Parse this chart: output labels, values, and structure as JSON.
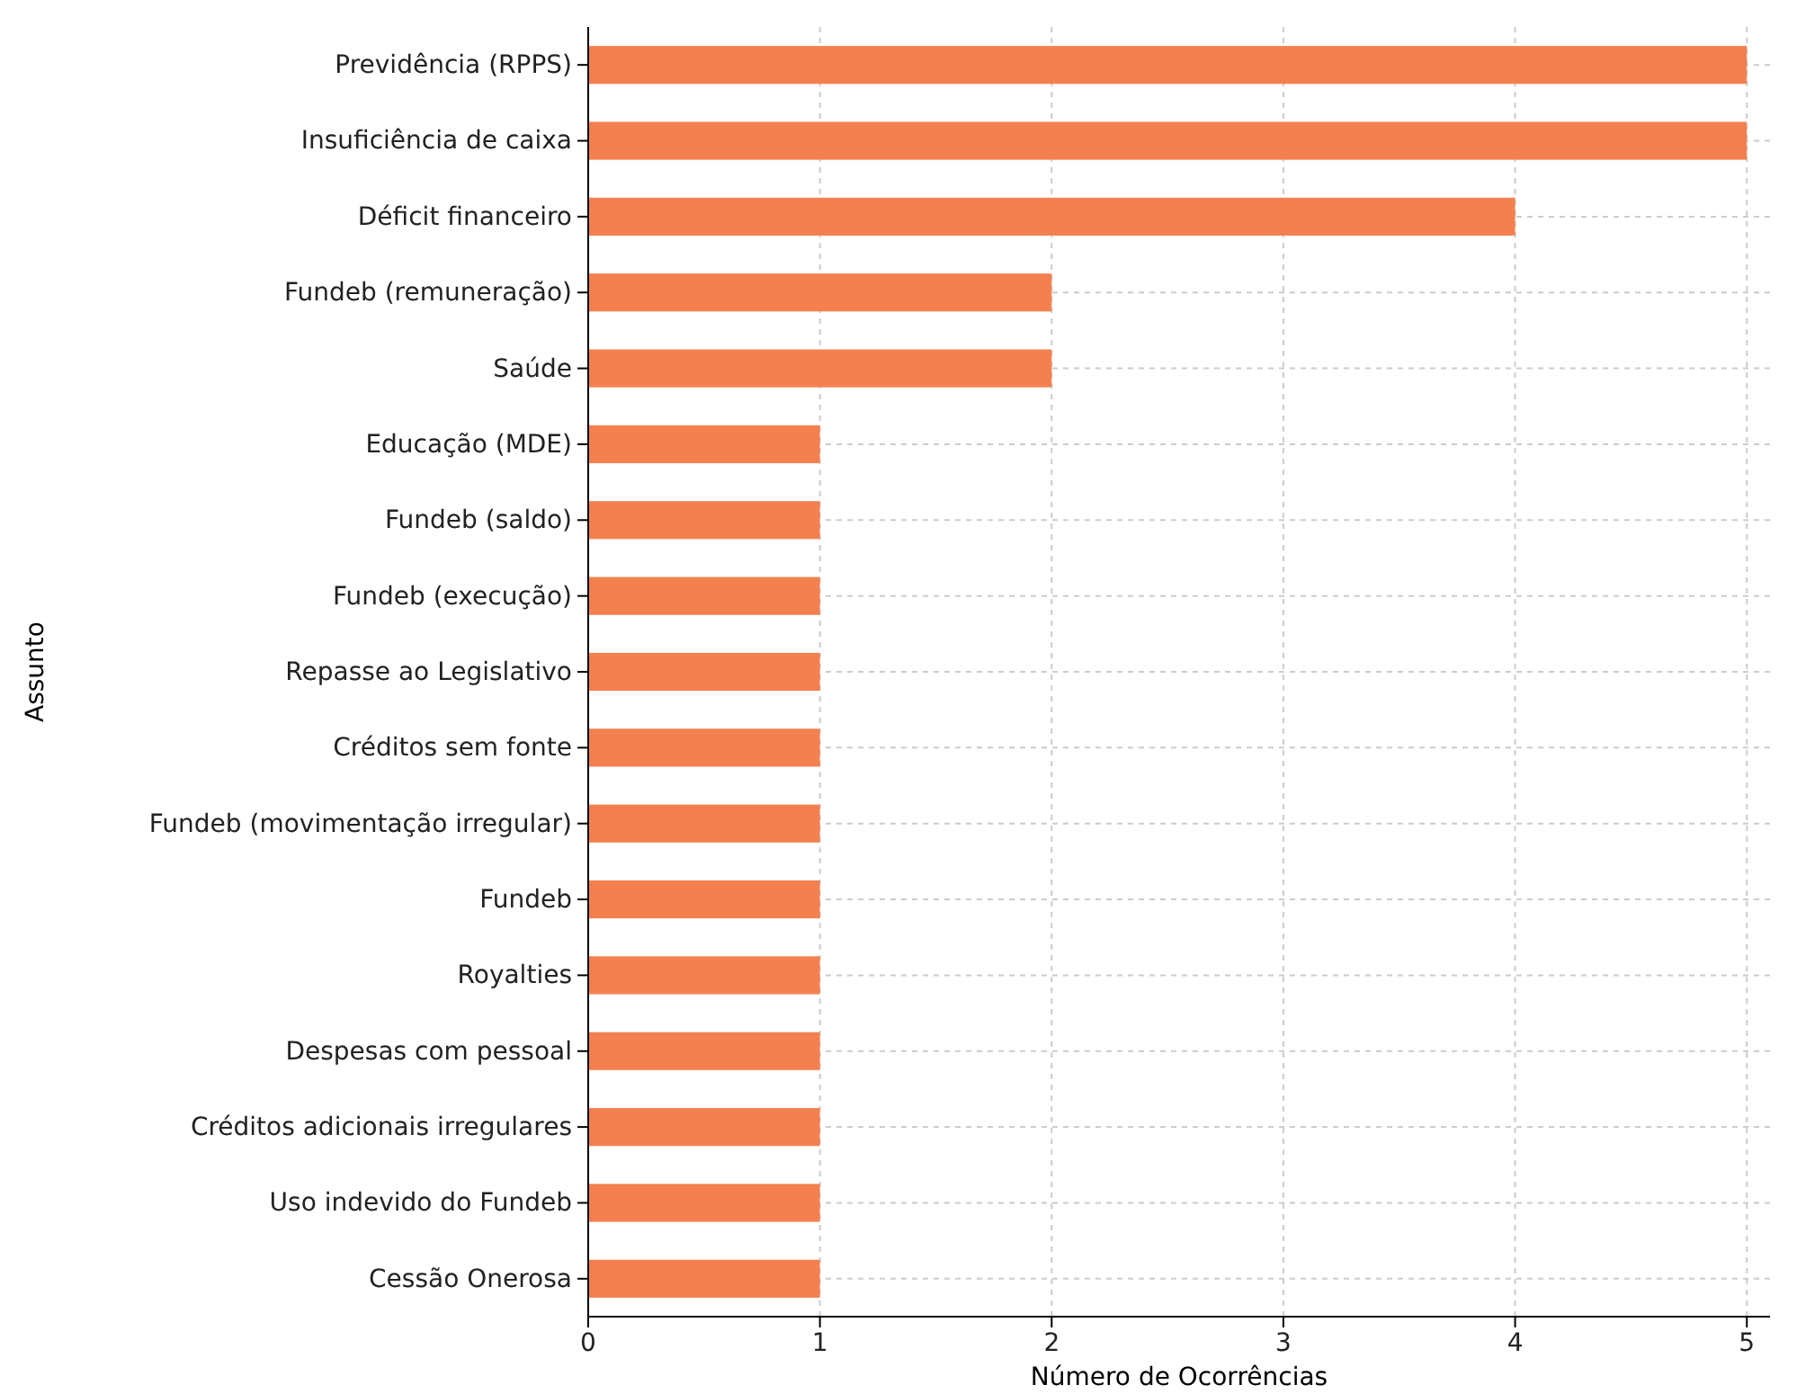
{
  "chart_data": {
    "type": "bar",
    "orientation": "horizontal",
    "xlabel": "Número de Ocorrências",
    "ylabel": "Assunto",
    "categories": [
      "Previdência (RPPS)",
      "Insuficiência de caixa",
      "Déficit financeiro",
      "Fundeb (remuneração)",
      "Saúde",
      "Educação (MDE)",
      "Fundeb (saldo)",
      "Fundeb (execução)",
      "Repasse ao Legislativo",
      "Créditos sem fonte",
      "Fundeb (movimentação irregular)",
      "Fundeb",
      "Royalties",
      "Despesas com pessoal",
      "Créditos adicionais irregulares",
      "Uso indevido do Fundeb",
      "Cessão Onerosa"
    ],
    "values": [
      5,
      5,
      4,
      2,
      2,
      1,
      1,
      1,
      1,
      1,
      1,
      1,
      1,
      1,
      1,
      1,
      1
    ],
    "color": "#f5804f",
    "xlim": [
      0,
      5.1
    ],
    "xticks": [
      0,
      1,
      2,
      3,
      4,
      5
    ],
    "grid": true
  }
}
